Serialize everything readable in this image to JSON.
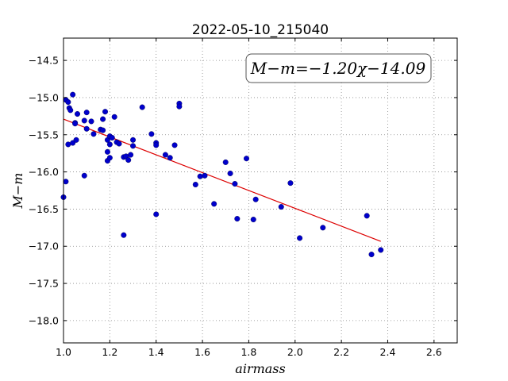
{
  "chart_data": {
    "type": "scatter",
    "title": "2022-05-10_215040",
    "xlabel": "airmass",
    "ylabel": "M−m",
    "xlim": [
      1.0,
      2.7
    ],
    "ylim": [
      -18.3,
      -14.2
    ],
    "y_inverted": true,
    "grid": true,
    "x_ticks": [
      1.0,
      1.2,
      1.4,
      1.6,
      1.8,
      2.0,
      2.2,
      2.4,
      2.6
    ],
    "x_tick_labels": [
      "1.0",
      "1.2",
      "1.4",
      "1.6",
      "1.8",
      "2.0",
      "2.2",
      "2.4",
      "2.6"
    ],
    "y_ticks": [
      -14.5,
      -15.0,
      -15.5,
      -16.0,
      -16.5,
      -17.0,
      -17.5,
      -18.0
    ],
    "y_tick_labels": [
      "−14.5",
      "−15.0",
      "−15.5",
      "−16.0",
      "−16.5",
      "−17.0",
      "−17.5",
      "−18.0"
    ],
    "annotation": "M−m=−1.20χ−14.09",
    "point_color": "#0000cc",
    "fit_color": "#dd0000",
    "fit": {
      "slope": -1.2,
      "intercept": -14.09,
      "x_range": [
        1.0,
        2.37
      ]
    },
    "points": [
      {
        "x": 1.0,
        "y": -16.34
      },
      {
        "x": 1.01,
        "y": -16.13
      },
      {
        "x": 1.01,
        "y": -15.03
      },
      {
        "x": 1.02,
        "y": -15.06
      },
      {
        "x": 1.02,
        "y": -15.63
      },
      {
        "x": 1.025,
        "y": -15.14
      },
      {
        "x": 1.03,
        "y": -15.17
      },
      {
        "x": 1.04,
        "y": -14.96
      },
      {
        "x": 1.04,
        "y": -15.61
      },
      {
        "x": 1.05,
        "y": -15.34
      },
      {
        "x": 1.05,
        "y": -15.35
      },
      {
        "x": 1.055,
        "y": -15.57
      },
      {
        "x": 1.06,
        "y": -15.22
      },
      {
        "x": 1.09,
        "y": -16.05
      },
      {
        "x": 1.09,
        "y": -15.31
      },
      {
        "x": 1.1,
        "y": -15.2
      },
      {
        "x": 1.1,
        "y": -15.42
      },
      {
        "x": 1.12,
        "y": -15.32
      },
      {
        "x": 1.13,
        "y": -15.49
      },
      {
        "x": 1.16,
        "y": -15.43
      },
      {
        "x": 1.17,
        "y": -15.44
      },
      {
        "x": 1.17,
        "y": -15.29
      },
      {
        "x": 1.18,
        "y": -15.19
      },
      {
        "x": 1.19,
        "y": -15.73
      },
      {
        "x": 1.19,
        "y": -15.57
      },
      {
        "x": 1.19,
        "y": -15.85
      },
      {
        "x": 1.2,
        "y": -15.52
      },
      {
        "x": 1.2,
        "y": -15.63
      },
      {
        "x": 1.2,
        "y": -15.81
      },
      {
        "x": 1.21,
        "y": -15.54
      },
      {
        "x": 1.22,
        "y": -15.26
      },
      {
        "x": 1.23,
        "y": -15.6
      },
      {
        "x": 1.24,
        "y": -15.62
      },
      {
        "x": 1.26,
        "y": -15.8
      },
      {
        "x": 1.26,
        "y": -16.85
      },
      {
        "x": 1.27,
        "y": -15.79
      },
      {
        "x": 1.28,
        "y": -15.84
      },
      {
        "x": 1.29,
        "y": -15.77
      },
      {
        "x": 1.3,
        "y": -15.65
      },
      {
        "x": 1.3,
        "y": -15.57
      },
      {
        "x": 1.34,
        "y": -15.13
      },
      {
        "x": 1.38,
        "y": -15.49
      },
      {
        "x": 1.4,
        "y": -15.61
      },
      {
        "x": 1.4,
        "y": -15.64
      },
      {
        "x": 1.4,
        "y": -16.57
      },
      {
        "x": 1.44,
        "y": -15.77
      },
      {
        "x": 1.46,
        "y": -15.81
      },
      {
        "x": 1.48,
        "y": -15.64
      },
      {
        "x": 1.5,
        "y": -15.08
      },
      {
        "x": 1.5,
        "y": -15.12
      },
      {
        "x": 1.57,
        "y": -16.17
      },
      {
        "x": 1.59,
        "y": -16.06
      },
      {
        "x": 1.61,
        "y": -16.05
      },
      {
        "x": 1.65,
        "y": -16.43
      },
      {
        "x": 1.7,
        "y": -15.87
      },
      {
        "x": 1.72,
        "y": -16.02
      },
      {
        "x": 1.74,
        "y": -16.16
      },
      {
        "x": 1.75,
        "y": -16.63
      },
      {
        "x": 1.79,
        "y": -15.82
      },
      {
        "x": 1.82,
        "y": -16.64
      },
      {
        "x": 1.83,
        "y": -16.37
      },
      {
        "x": 1.94,
        "y": -16.47
      },
      {
        "x": 1.98,
        "y": -16.15
      },
      {
        "x": 2.02,
        "y": -16.89
      },
      {
        "x": 2.12,
        "y": -16.75
      },
      {
        "x": 2.31,
        "y": -16.59
      },
      {
        "x": 2.33,
        "y": -17.11
      },
      {
        "x": 2.37,
        "y": -17.05
      }
    ]
  }
}
